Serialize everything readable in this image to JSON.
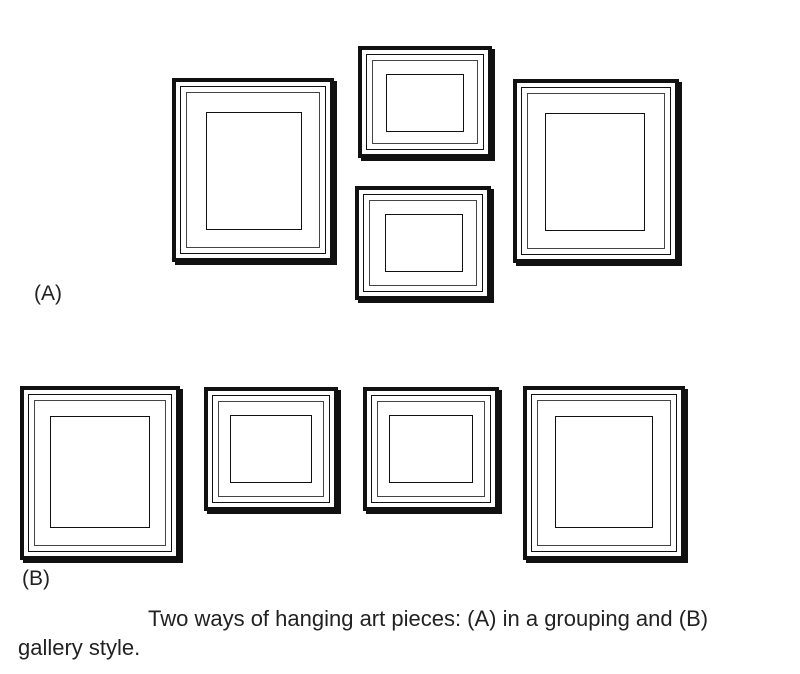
{
  "labels": {
    "group_a": "(A)",
    "group_b": "(B)"
  },
  "caption": "Two ways of hanging art pieces: (A) in a grouping and (B) gallery style.",
  "colors": {
    "frame": "#111111",
    "background": "#ffffff",
    "text": "#222222"
  }
}
